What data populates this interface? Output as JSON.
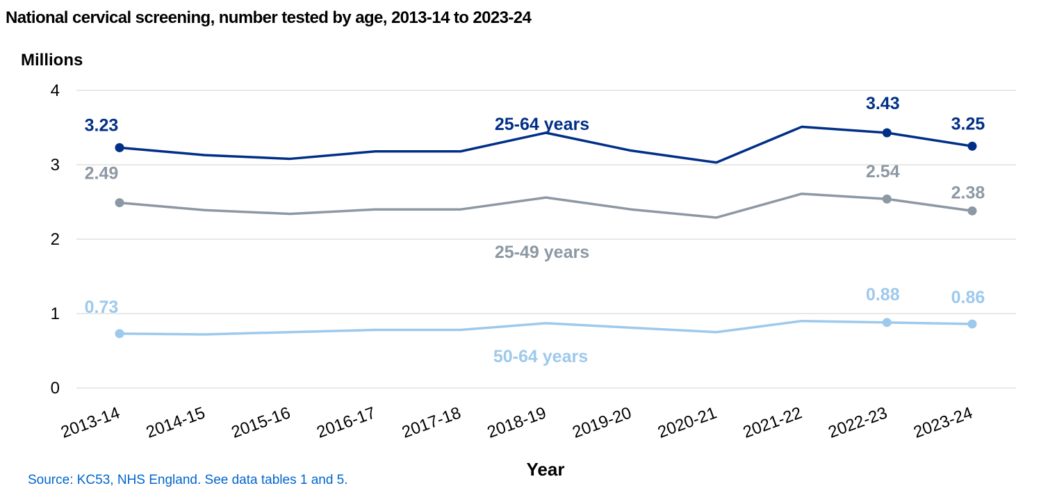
{
  "title": "National cervical screening, number tested by age, 2013-14 to 2023-24",
  "source": "Source: KC53, NHS England. See data tables 1 and 5.",
  "chart_data": {
    "type": "line",
    "title": "National cervical screening, number tested by age, 2013-14 to 2023-24",
    "ylabel": "Millions",
    "xlabel": "Year",
    "ylim": [
      0,
      4
    ],
    "yticks": [
      "0",
      "1",
      "2",
      "3",
      "4"
    ],
    "grid": true,
    "categories": [
      "2013-14",
      "2014-15",
      "2015-16",
      "2016-17",
      "2017-18",
      "2018-19",
      "2019-20",
      "2020-21",
      "2021-22",
      "2022-23",
      "2023-24"
    ],
    "series": [
      {
        "name": "25-64 years",
        "color": "#002f87",
        "values": [
          3.23,
          3.13,
          3.08,
          3.18,
          3.18,
          3.43,
          3.19,
          3.03,
          3.51,
          3.43,
          3.25
        ],
        "labels": [
          {
            "index": 0,
            "text": "3.23"
          },
          {
            "index": 9,
            "text": "3.43"
          },
          {
            "index": 10,
            "text": "3.25"
          }
        ]
      },
      {
        "name": "25-49 years",
        "color": "#8c98a4",
        "values": [
          2.49,
          2.39,
          2.34,
          2.4,
          2.4,
          2.56,
          2.4,
          2.29,
          2.61,
          2.54,
          2.38
        ],
        "labels": [
          {
            "index": 0,
            "text": "2.49"
          },
          {
            "index": 9,
            "text": "2.54"
          },
          {
            "index": 10,
            "text": "2.38"
          }
        ]
      },
      {
        "name": "50-64 years",
        "color": "#9dc9ec",
        "values": [
          0.73,
          0.72,
          0.75,
          0.78,
          0.78,
          0.87,
          0.81,
          0.75,
          0.9,
          0.88,
          0.86
        ],
        "labels": [
          {
            "index": 0,
            "text": "0.73"
          },
          {
            "index": 9,
            "text": "0.88"
          },
          {
            "index": 10,
            "text": "0.86"
          }
        ]
      }
    ]
  }
}
